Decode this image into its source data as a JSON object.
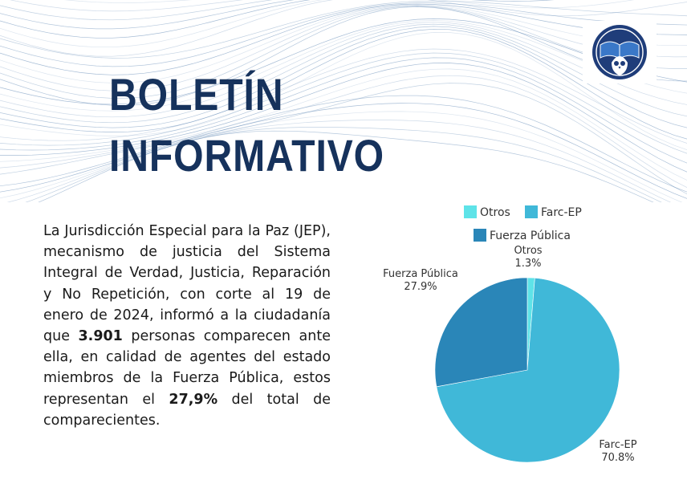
{
  "header": {
    "title_line1": "BOLETÍN",
    "title_line2": "INFORMATIVO"
  },
  "logo": {
    "icon": "owl-book-emblem-icon",
    "colors": [
      "#1f3d7a",
      "#3a78c8",
      "#ffffff"
    ]
  },
  "body": {
    "part1": "La Jurisdicción Especial para la Paz (JEP), mecanismo de justicia del Sistema Integral de Verdad, Justicia, Reparación y No Repetición, con corte al 19 de enero de 2024, informó a la ciudadanía que ",
    "highlight1": "3.901",
    "part2": " personas comparecen ante ella, en calidad de agentes del estado miembros de la Fuerza Pública, estos representan el ",
    "highlight2": "27,9%",
    "part3": " del total de comparecientes."
  },
  "chart_data": {
    "type": "pie",
    "slices": [
      {
        "label": "Otros",
        "value": 1.3,
        "value_label": "1.3%",
        "color": "#5ee3e8"
      },
      {
        "label": "Farc-EP",
        "value": 70.8,
        "value_label": "70.8%",
        "color": "#40b8d8"
      },
      {
        "label": "Fuerza Pública",
        "value": 27.9,
        "value_label": "27.9%",
        "color": "#2a86b8"
      }
    ],
    "legend": {
      "placement": "top",
      "entries": [
        "Otros",
        "Farc-EP",
        "Fuerza Pública"
      ]
    },
    "start_angle_deg": 0,
    "direction": "clockwise"
  },
  "colors": {
    "title": "#16325c",
    "wave": "#3f6fa6",
    "text": "#1a1a1a"
  }
}
